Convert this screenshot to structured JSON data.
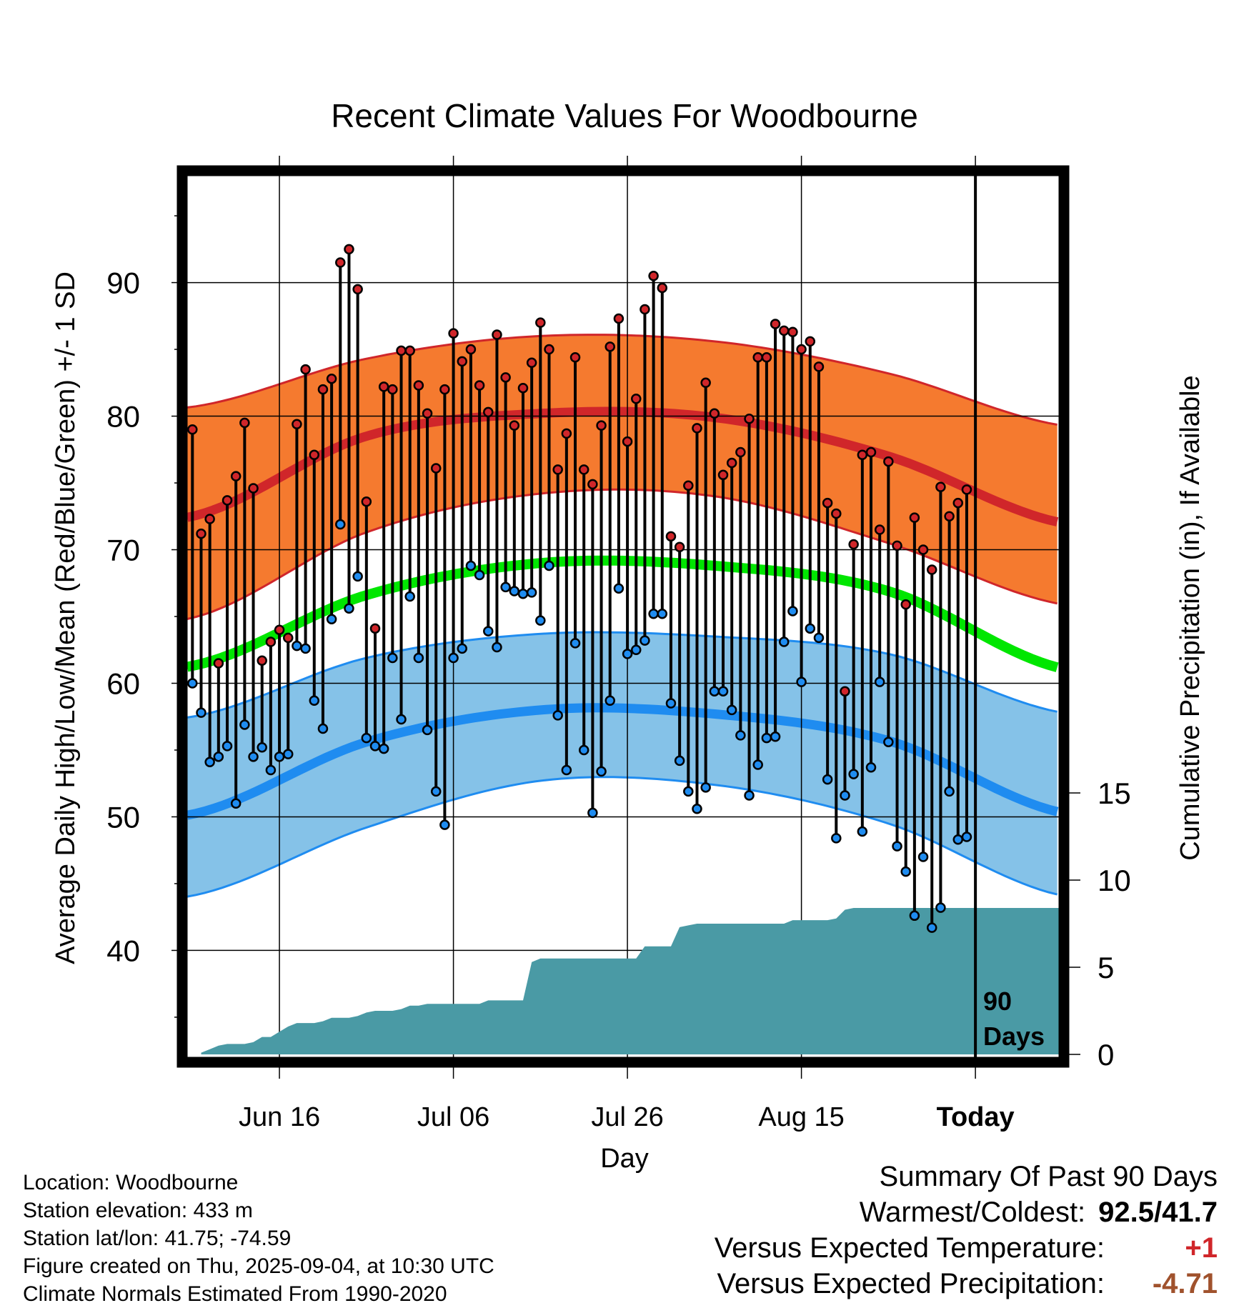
{
  "chart_data": {
    "type": "line",
    "title": "Recent Climate Values For Woodbourne",
    "xlabel": "Day",
    "ylabel": "Average Daily High/Low/Mean (Red/Blue/Green) +/- 1 SD",
    "y2label": "Cumulative Precipitation (in), If Available",
    "x_tick_labels": [
      "Jun 16",
      "Jul 06",
      "Jul 26",
      "Aug 15",
      "Today"
    ],
    "x_tick_days": [
      10,
      30,
      50,
      70,
      90
    ],
    "y_ticks": [
      40,
      50,
      60,
      70,
      80,
      90
    ],
    "y_range": [
      32,
      98
    ],
    "y2_ticks": [
      0,
      5,
      10,
      15
    ],
    "y2_range": [
      0,
      15
    ],
    "day_range": [
      -0.6,
      99.6
    ],
    "today_day": 90,
    "today_label_line1": "90",
    "today_label_line2": "Days",
    "grid": true,
    "colors": {
      "high_band": "#f57a2f",
      "high_line": "#d0262a",
      "low_band": "#85c2e8",
      "low_line": "#1f8cf0",
      "mean_line": "#00e600",
      "precip": "#4a9aa5",
      "high_dot": "#d0262a",
      "low_dot": "#1f8cf0"
    },
    "normals": {
      "days": [
        0,
        20,
        40,
        60,
        80,
        100
      ],
      "high_mean": [
        72.5,
        78.5,
        80.2,
        79.9,
        77.0,
        72.0
      ],
      "high_upper": [
        80.7,
        84.3,
        86.0,
        85.6,
        83.2,
        79.3
      ],
      "high_lower": [
        64.9,
        71.3,
        74.2,
        74.0,
        70.5,
        65.9
      ],
      "mean": [
        61.3,
        66.6,
        69.0,
        68.8,
        66.9,
        61.1
      ],
      "low_mean": [
        50.2,
        55.6,
        58.0,
        57.7,
        55.7,
        50.3
      ],
      "low_upper": [
        57.5,
        61.9,
        63.7,
        63.5,
        62.2,
        57.8
      ],
      "low_lower": [
        44.1,
        49.2,
        52.7,
        52.4,
        49.5,
        44.1
      ]
    },
    "series": [
      {
        "name": "High",
        "values": [
          79.0,
          71.2,
          72.3,
          61.5,
          73.7,
          75.5,
          79.5,
          74.6,
          61.7,
          63.1,
          64.0,
          63.4,
          79.4,
          83.5,
          77.1,
          82.0,
          82.8,
          91.5,
          92.5,
          89.5,
          73.6,
          64.1,
          82.2,
          82.0,
          84.9,
          84.9,
          82.3,
          80.2,
          76.1,
          82.0,
          86.2,
          84.1,
          85.0,
          82.3,
          80.3,
          86.1,
          82.9,
          79.3,
          82.1,
          84.0,
          87.0,
          85.0,
          76.0,
          78.7,
          84.4,
          76.0,
          74.9,
          79.3,
          85.2,
          87.3,
          78.1,
          81.3,
          88.0,
          90.5,
          89.6,
          71.0,
          70.2,
          74.8,
          79.1,
          82.5,
          80.2,
          75.6,
          76.5,
          77.3,
          79.8,
          84.4,
          84.4,
          86.9,
          86.4,
          86.3,
          85.0,
          85.6,
          83.7,
          73.5,
          72.7,
          59.4,
          70.4,
          77.1,
          77.3,
          71.5,
          76.6,
          70.3,
          65.9,
          72.4,
          70.0,
          68.5,
          74.7,
          72.5,
          73.5,
          74.5
        ]
      },
      {
        "name": "Low",
        "values": [
          60.0,
          57.8,
          54.1,
          54.5,
          55.3,
          51.0,
          56.9,
          54.5,
          55.2,
          53.5,
          54.5,
          54.7,
          62.8,
          62.6,
          58.7,
          56.6,
          64.8,
          71.9,
          65.6,
          68.0,
          55.9,
          55.3,
          55.1,
          61.9,
          57.3,
          66.5,
          61.9,
          56.5,
          51.9,
          49.4,
          61.9,
          62.6,
          68.8,
          68.1,
          63.9,
          62.7,
          67.2,
          66.9,
          66.7,
          66.8,
          64.7,
          68.8,
          57.6,
          53.5,
          63.0,
          55.0,
          50.3,
          53.4,
          58.7,
          67.1,
          62.2,
          62.5,
          63.2,
          65.2,
          65.2,
          58.5,
          54.2,
          51.9,
          50.6,
          52.2,
          59.4,
          59.4,
          58.0,
          56.1,
          51.6,
          53.9,
          55.9,
          56.0,
          63.1,
          65.4,
          60.1,
          64.1,
          63.4,
          52.8,
          48.4,
          51.6,
          53.2,
          48.9,
          53.7,
          60.1,
          55.6,
          47.8,
          45.9,
          42.6,
          47.0,
          41.7,
          43.2,
          51.9,
          48.3,
          48.5
        ]
      }
    ],
    "precip": {
      "days": [
        1,
        2,
        3,
        4,
        5,
        6,
        7,
        8,
        9,
        10,
        11,
        12,
        13,
        14,
        15,
        16,
        17,
        18,
        19,
        20,
        21,
        22,
        23,
        24,
        25,
        26,
        27,
        28,
        29,
        30,
        31,
        32,
        33,
        34,
        35,
        36,
        37,
        38,
        39,
        40,
        41,
        42,
        43,
        44,
        45,
        46,
        47,
        48,
        49,
        50,
        51,
        52,
        53,
        54,
        55,
        56,
        57,
        58,
        59,
        60,
        61,
        62,
        63,
        64,
        65,
        66,
        67,
        68,
        69,
        70,
        71,
        72,
        73,
        74,
        75,
        76,
        77,
        78,
        79,
        80,
        81,
        82,
        83,
        84,
        85,
        86,
        87,
        88,
        89,
        90,
        99.6
      ],
      "values": [
        0.1,
        0.3,
        0.5,
        0.6,
        0.6,
        0.6,
        0.7,
        1.0,
        1.0,
        1.3,
        1.6,
        1.8,
        1.8,
        1.8,
        1.9,
        2.1,
        2.1,
        2.1,
        2.2,
        2.4,
        2.5,
        2.5,
        2.5,
        2.6,
        2.8,
        2.8,
        2.9,
        2.9,
        2.9,
        2.9,
        2.9,
        2.9,
        2.9,
        3.1,
        3.1,
        3.1,
        3.1,
        3.1,
        5.3,
        5.5,
        5.5,
        5.5,
        5.5,
        5.5,
        5.5,
        5.5,
        5.5,
        5.5,
        5.5,
        5.5,
        5.5,
        6.2,
        6.2,
        6.2,
        6.2,
        7.3,
        7.4,
        7.5,
        7.5,
        7.5,
        7.5,
        7.5,
        7.5,
        7.5,
        7.5,
        7.5,
        7.5,
        7.5,
        7.7,
        7.7,
        7.7,
        7.7,
        7.7,
        7.8,
        8.3,
        8.4,
        8.4,
        8.4,
        8.4,
        8.4,
        8.4,
        8.4,
        8.4,
        8.4,
        8.4,
        8.4,
        8.4,
        8.4,
        8.4,
        8.4,
        8.4
      ]
    }
  },
  "info": {
    "location": "Location: Woodbourne",
    "elevation": "Station elevation: 433 m",
    "latlon": "Station lat/lon: 41.75; -74.59",
    "created": "Figure created on Thu, 2025-09-04, at 10:30 UTC",
    "normals": "Climate Normals Estimated From 1990-2020"
  },
  "summary": {
    "title": "Summary Of Past 90 Days",
    "warm_cold_label": "Warmest/Coldest:",
    "warm_cold_value": "92.5/41.7",
    "temp_label": "Versus Expected Temperature:",
    "temp_value": "+1",
    "temp_color": "#d0262a",
    "precip_label": "Versus Expected Precipitation:",
    "precip_value": "-4.71",
    "precip_color": "#a0522d"
  }
}
